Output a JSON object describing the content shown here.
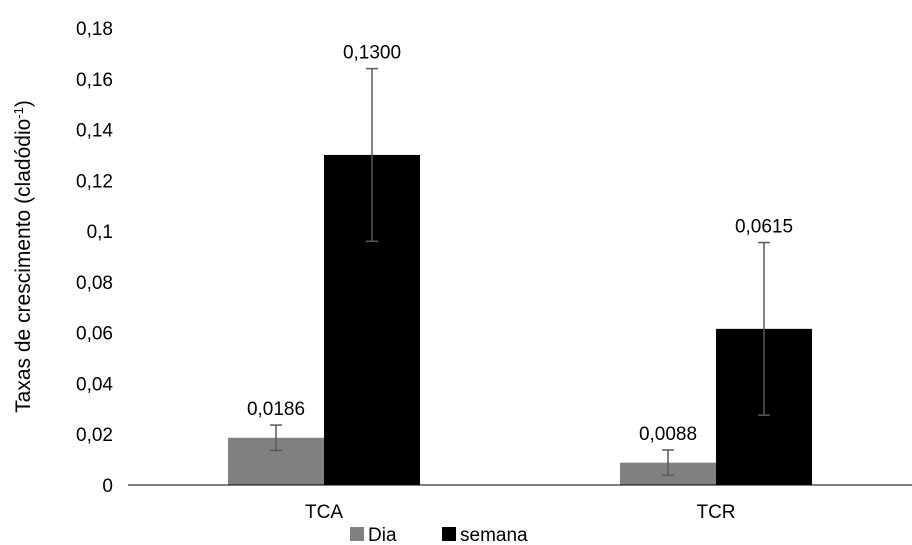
{
  "chart_data": {
    "type": "bar",
    "categories": [
      "TCA",
      "TCR"
    ],
    "series": [
      {
        "name": "Dia",
        "color": "#808080",
        "values": [
          0.0186,
          0.0088
        ],
        "value_labels": [
          "0,0186",
          "0,0088"
        ],
        "error": [
          0.005,
          0.005
        ]
      },
      {
        "name": "semana",
        "color": "#000000",
        "values": [
          0.13,
          0.0615
        ],
        "value_labels": [
          "0,1300",
          "0,0615"
        ],
        "error": [
          0.034,
          0.034
        ]
      }
    ],
    "ylabel_main": "Taxas de crescimento (cladódio",
    "ylabel_sup": "-1",
    "ylabel_end": ")",
    "ylim": [
      0,
      0.18
    ],
    "yticks": [
      0,
      0.02,
      0.04,
      0.06,
      0.08,
      0.1,
      0.12,
      0.14,
      0.16,
      0.18
    ],
    "ytick_labels": [
      "0",
      "0,02",
      "0,04",
      "0,06",
      "0,08",
      "0,1",
      "0,12",
      "0,14",
      "0,16",
      "0,18"
    ],
    "grid": false,
    "legend_position": "bottom",
    "error_bar_color": "#595959"
  }
}
